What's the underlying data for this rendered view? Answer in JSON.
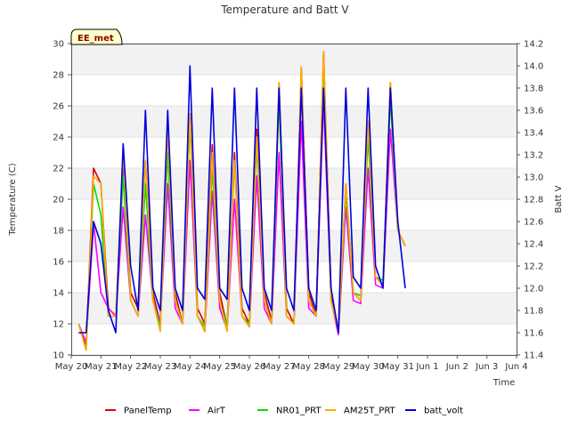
{
  "chart_data": {
    "type": "line",
    "title": "Temperature and Batt V",
    "xlabel": "Time",
    "ylabel": "Temperature (C)",
    "y2label": "Batt V",
    "badge": "EE_met",
    "x_ticks": [
      "May 20",
      "May 21",
      "May 22",
      "May 23",
      "May 24",
      "May 25",
      "May 26",
      "May 27",
      "May 28",
      "May 29",
      "May 30",
      "May 31",
      "Jun 1",
      "Jun 2",
      "Jun 3",
      "Jun 4"
    ],
    "xlim_days": [
      0,
      15
    ],
    "ylim": [
      10,
      30
    ],
    "y_ticks": [
      10,
      12,
      14,
      16,
      18,
      20,
      22,
      24,
      26,
      28,
      30
    ],
    "y2lim": [
      11.4,
      14.2
    ],
    "y2_ticks": [
      11.4,
      11.6,
      11.8,
      12.0,
      12.2,
      12.4,
      12.6,
      12.8,
      13.0,
      13.2,
      13.4,
      13.6,
      13.8,
      14.0,
      14.2
    ],
    "grid": "horizontal bands",
    "legend_position": "bottom",
    "x": [
      0.25,
      0.5,
      0.75,
      1.0,
      1.25,
      1.5,
      1.75,
      2.0,
      2.25,
      2.5,
      2.75,
      3.0,
      3.25,
      3.5,
      3.75,
      4.0,
      4.25,
      4.5,
      4.75,
      5.0,
      5.25,
      5.5,
      5.75,
      6.0,
      6.25,
      6.5,
      6.75,
      7.0,
      7.25,
      7.5,
      7.75,
      8.0,
      8.25,
      8.5,
      8.75,
      9.0,
      9.25,
      9.5,
      9.75,
      10.0,
      10.25,
      10.5,
      10.75,
      11.0,
      11.25,
      11.5,
      11.75,
      12.0,
      12.25,
      12.5,
      12.75,
      13.0,
      13.25,
      13.5,
      13.75,
      14.0,
      14.25,
      14.5,
      14.75
    ],
    "series": [
      {
        "name": "PanelTemp",
        "color": "#dd0000",
        "axis": "left",
        "values": [
          12.0,
          10.5,
          22.0,
          21.0,
          13.0,
          12.5,
          22.5,
          14.0,
          13.0,
          22.5,
          14.0,
          12.0,
          25.0,
          14.0,
          12.0,
          25.5,
          13.0,
          12.0,
          23.5,
          14.0,
          11.8,
          23.0,
          13.0,
          12.0,
          24.5,
          14.0,
          12.2,
          27.5,
          13.0,
          12.0,
          28.5,
          14.0,
          12.5,
          29.5,
          14.0,
          11.5,
          21.0,
          14.0,
          13.5,
          25.0,
          15.0,
          14.5,
          27.5,
          18.0,
          17.0,
          null,
          null,
          null,
          null,
          null,
          null,
          null,
          null,
          null,
          null,
          null,
          null,
          null,
          null
        ]
      },
      {
        "name": "AirT",
        "color": "#ff00ff",
        "axis": "left",
        "values": [
          12.0,
          10.8,
          18.5,
          14.0,
          13.0,
          12.5,
          19.5,
          13.5,
          12.5,
          19.0,
          13.5,
          12.0,
          21.0,
          13.0,
          12.0,
          22.5,
          12.5,
          11.5,
          20.5,
          13.0,
          11.6,
          20.0,
          12.5,
          11.8,
          21.5,
          13.0,
          12.0,
          23.0,
          12.5,
          12.0,
          25.0,
          13.0,
          12.5,
          26.5,
          13.5,
          11.3,
          19.5,
          13.5,
          13.3,
          22.0,
          14.5,
          14.3,
          24.5,
          18.0,
          17.0,
          null,
          null,
          null,
          null,
          null,
          null,
          null,
          null,
          null,
          null,
          null,
          null,
          null,
          null
        ]
      },
      {
        "name": "NR01_PRT",
        "color": "#00dd00",
        "axis": "left",
        "values": [
          12.0,
          10.3,
          21.0,
          19.0,
          12.5,
          12.5,
          21.5,
          13.5,
          12.5,
          21.0,
          13.5,
          11.8,
          23.0,
          13.5,
          12.0,
          25.0,
          12.5,
          11.8,
          22.0,
          13.5,
          11.8,
          22.5,
          12.5,
          12.0,
          23.5,
          13.5,
          12.0,
          26.5,
          12.5,
          12.0,
          28.0,
          13.5,
          12.5,
          29.0,
          13.5,
          11.5,
          20.5,
          14.0,
          13.8,
          24.0,
          15.0,
          14.8,
          26.5,
          18.0,
          17.0,
          null,
          null,
          null,
          null,
          null,
          null,
          null,
          null,
          null,
          null,
          null,
          null,
          null,
          null
        ]
      },
      {
        "name": "AM25T_PRT",
        "color": "#ffaa00",
        "axis": "left",
        "values": [
          12.0,
          10.3,
          21.5,
          21.0,
          12.5,
          12.5,
          23.0,
          13.5,
          12.5,
          22.5,
          13.5,
          11.5,
          24.5,
          13.5,
          12.0,
          25.5,
          12.5,
          11.5,
          23.0,
          13.5,
          11.5,
          22.5,
          12.5,
          11.8,
          24.0,
          13.5,
          12.0,
          27.5,
          12.5,
          12.0,
          28.5,
          13.5,
          12.5,
          29.5,
          13.5,
          11.5,
          21.0,
          14.0,
          13.5,
          25.0,
          15.0,
          14.5,
          27.5,
          18.0,
          17.0,
          null,
          null,
          null,
          null,
          null,
          null,
          null,
          null,
          null,
          null,
          null,
          null,
          null,
          null
        ]
      },
      {
        "name": "batt_volt",
        "color": "#0000dd",
        "axis": "right",
        "values": [
          11.6,
          11.6,
          12.6,
          12.4,
          11.8,
          11.6,
          13.3,
          12.2,
          11.8,
          13.6,
          12.0,
          11.8,
          13.6,
          12.0,
          11.8,
          14.0,
          12.0,
          11.9,
          13.8,
          12.0,
          11.9,
          13.8,
          12.0,
          11.8,
          13.8,
          12.0,
          11.8,
          13.8,
          12.0,
          11.8,
          13.8,
          12.0,
          11.8,
          13.8,
          12.0,
          11.6,
          13.8,
          12.1,
          12.0,
          13.8,
          12.2,
          12.0,
          13.8,
          12.6,
          12.0,
          null,
          null,
          null,
          null,
          null,
          null,
          null,
          null,
          null,
          null,
          null,
          null,
          null,
          null
        ]
      }
    ]
  }
}
